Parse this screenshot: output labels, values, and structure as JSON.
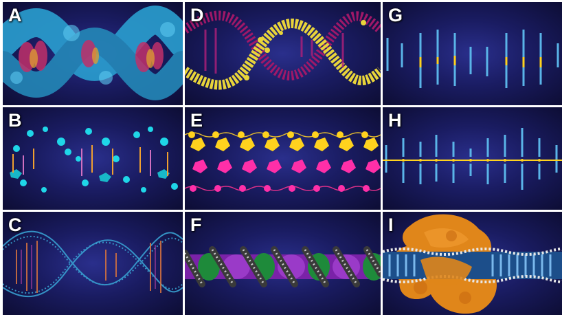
{
  "panels": [
    {
      "label": "A"
    },
    {
      "label": "D"
    },
    {
      "label": "G"
    },
    {
      "label": "B"
    },
    {
      "label": "E"
    },
    {
      "label": "H"
    },
    {
      "label": "C"
    },
    {
      "label": "F"
    },
    {
      "label": "I"
    }
  ],
  "colors": {
    "background": "#1a1c62",
    "surface_blue": "#2a9fd0",
    "yellow_backbone": "#e8d43a",
    "magenta": "#b0207a",
    "cyan": "#1fd6e8",
    "gold": "#ffd21e",
    "pink": "#ff2fa8",
    "rod_blue": "#5ab4e8",
    "green": "#1e8a3a",
    "purple": "#8a2bb8",
    "orange": "#e0861a"
  }
}
